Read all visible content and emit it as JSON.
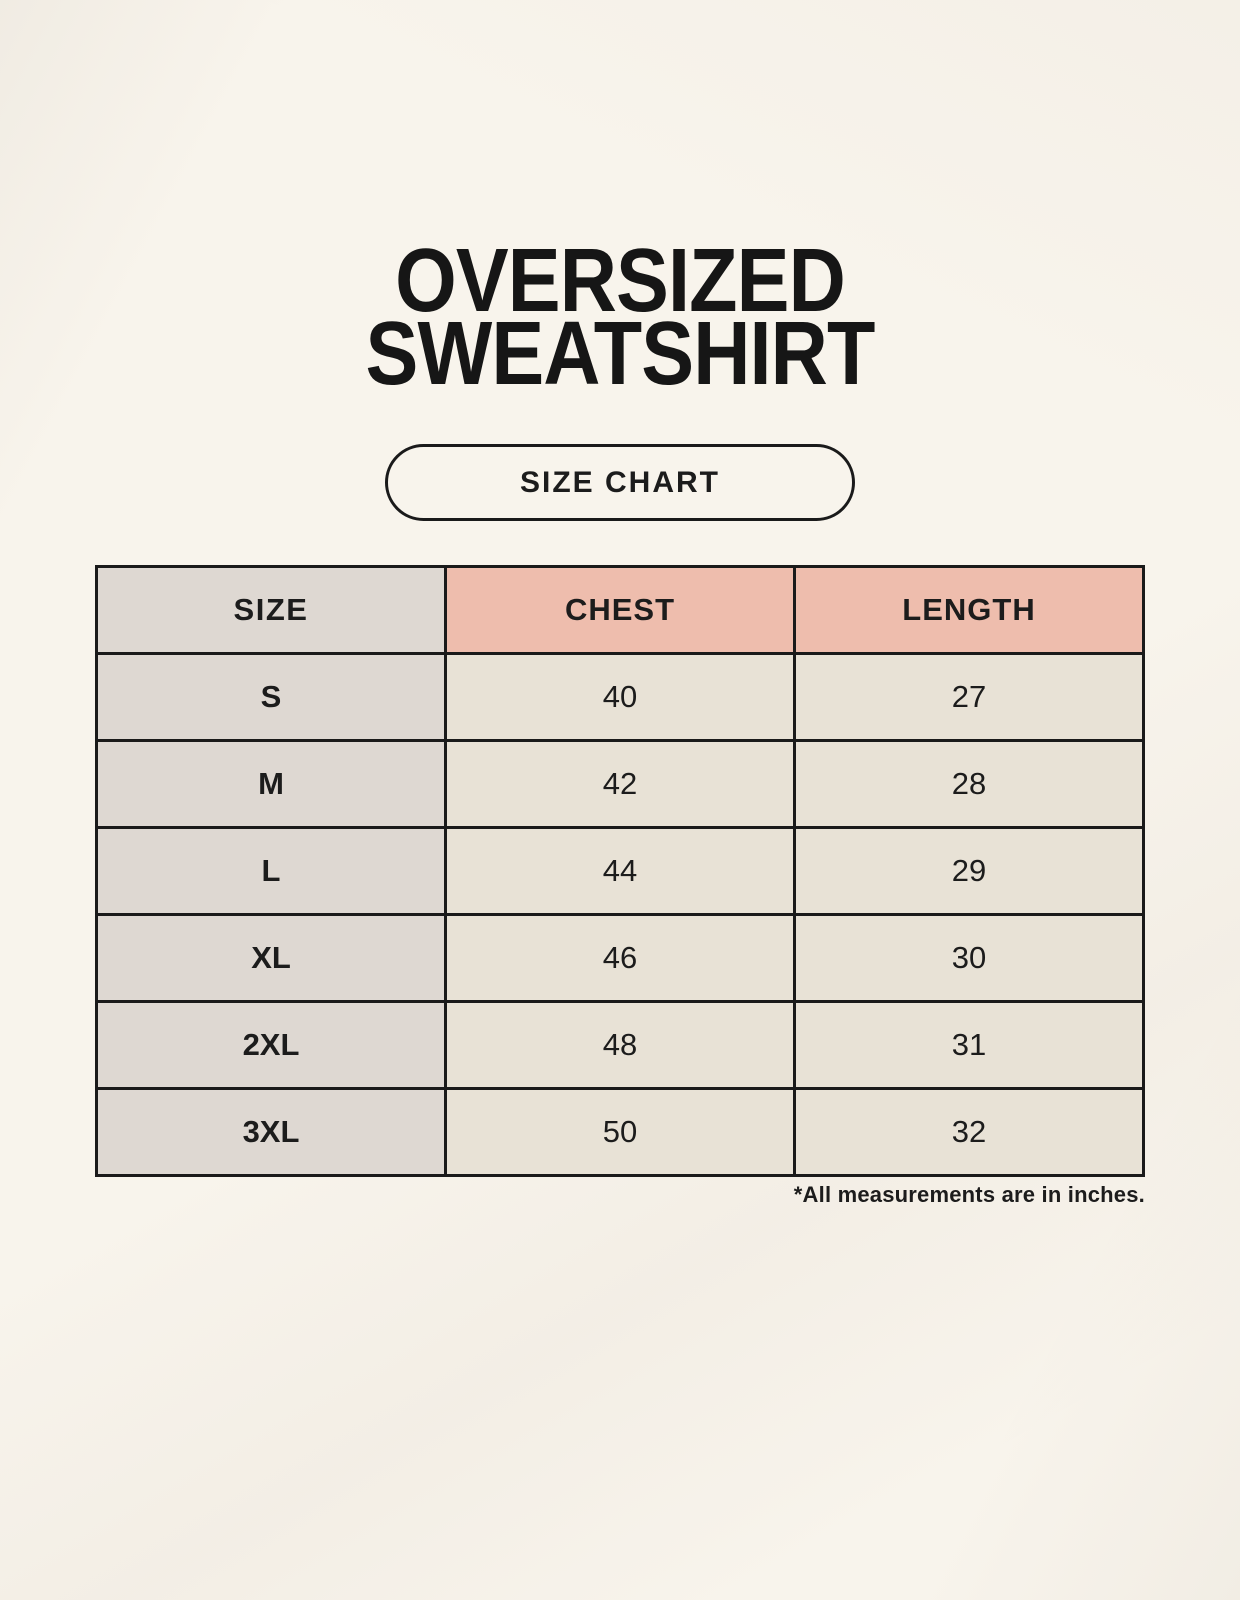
{
  "header": {
    "title_line1": "OVERSIZED",
    "title_line2": "SWEATSHIRT",
    "badge_label": "SIZE CHART"
  },
  "footnote": "*All measurements are in inches.",
  "colors": {
    "page_background": "#F8F4EC",
    "size_column_bg": "#DED8D2",
    "accent_header_bg": "#EEBDAD",
    "data_cell_bg": "#E8E2D6",
    "table_border": "#1A1A1A",
    "text": "#1C1C1C"
  },
  "chart_data": {
    "type": "table",
    "title": "OVERSIZED SWEATSHIRT SIZE CHART",
    "columns": [
      "SIZE",
      "CHEST",
      "LENGTH"
    ],
    "units": "inches",
    "rows": [
      [
        "S",
        40,
        27
      ],
      [
        "M",
        42,
        28
      ],
      [
        "L",
        44,
        29
      ],
      [
        "XL",
        46,
        30
      ],
      [
        "2XL",
        48,
        31
      ],
      [
        "3XL",
        50,
        32
      ]
    ]
  }
}
